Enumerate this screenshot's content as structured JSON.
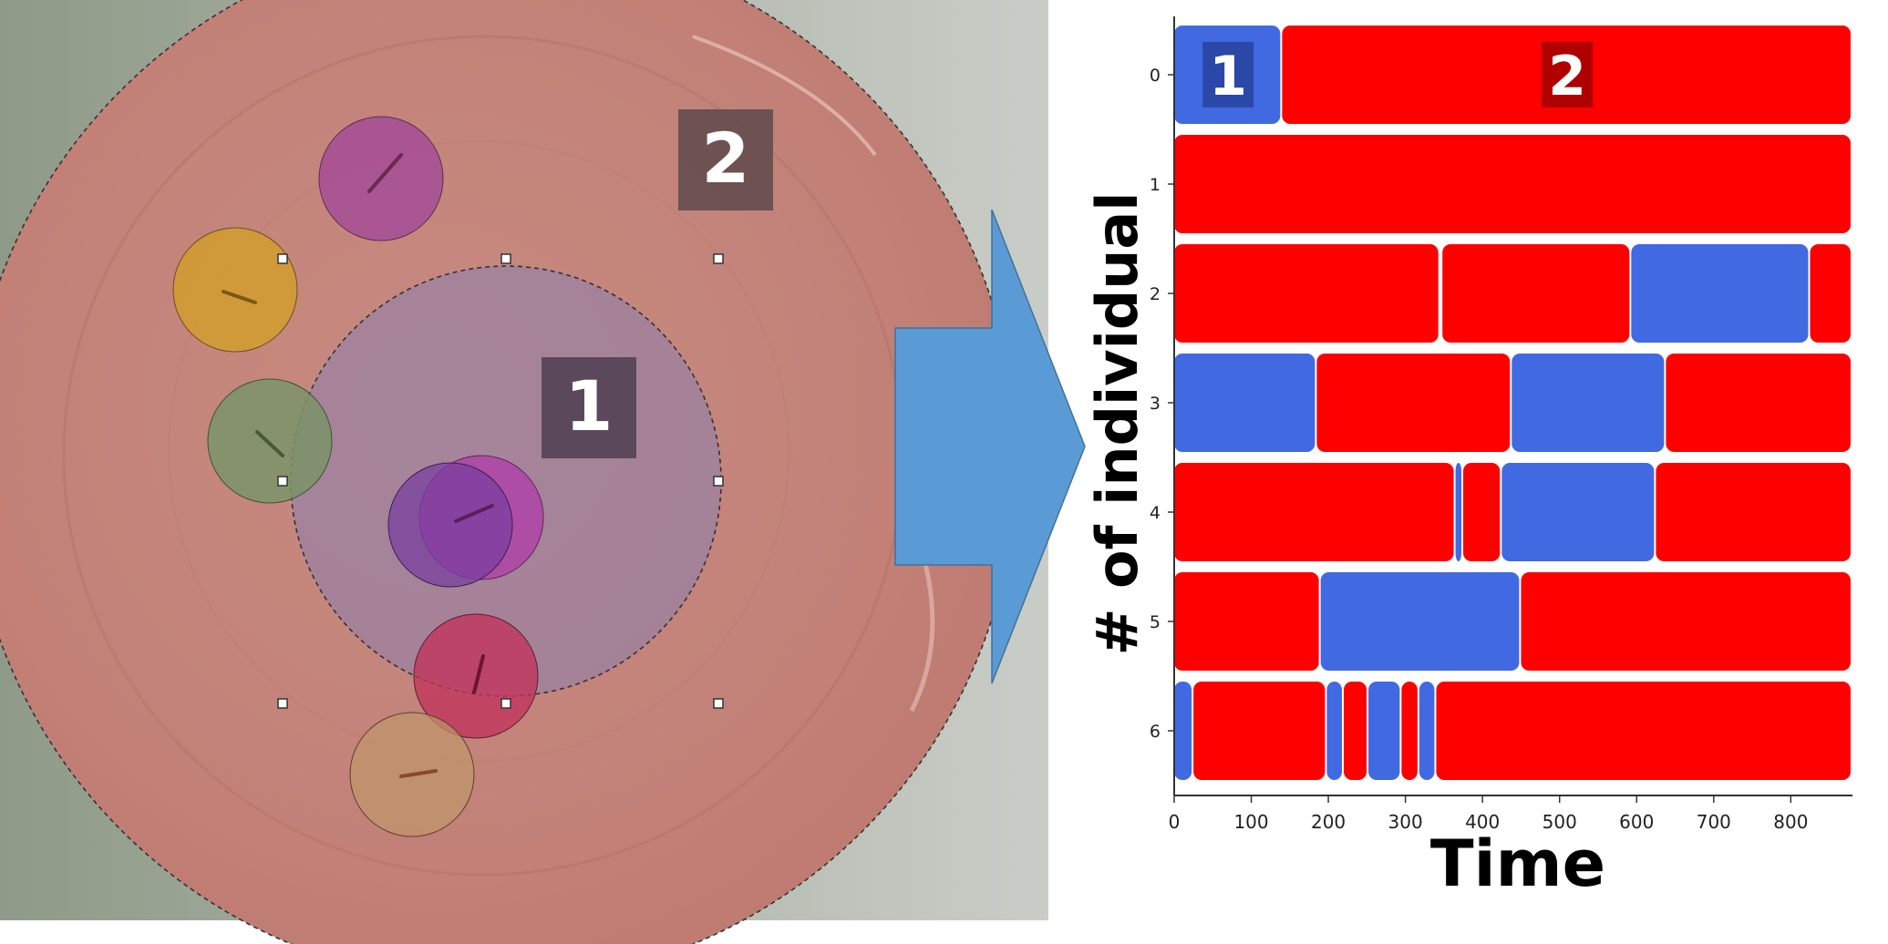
{
  "photo": {
    "zone_labels": [
      "1",
      "2"
    ]
  },
  "chart_data": {
    "type": "timeline",
    "xlabel": "Time",
    "ylabel": "# of individual",
    "xlim": [
      0,
      880
    ],
    "x_ticks": [
      0,
      100,
      200,
      300,
      400,
      500,
      600,
      700,
      800
    ],
    "categories": [
      "0",
      "1",
      "2",
      "3",
      "4",
      "5",
      "6"
    ],
    "state_colors": {
      "1": "#4169e1",
      "2": "#ff0000"
    },
    "legend_labels": [
      "1",
      "2"
    ],
    "rows": [
      {
        "individual": "0",
        "segments": [
          {
            "state": "1",
            "start": 0,
            "end": 140
          },
          {
            "state": "2",
            "start": 140,
            "end": 880
          }
        ]
      },
      {
        "individual": "1",
        "segments": [
          {
            "state": "2",
            "start": 0,
            "end": 880
          }
        ]
      },
      {
        "individual": "2",
        "segments": [
          {
            "state": "2",
            "start": 0,
            "end": 345
          },
          {
            "state": "2",
            "start": 348,
            "end": 593
          },
          {
            "state": "1",
            "start": 593,
            "end": 825
          },
          {
            "state": "2",
            "start": 825,
            "end": 880
          }
        ]
      },
      {
        "individual": "3",
        "segments": [
          {
            "state": "1",
            "start": 0,
            "end": 185
          },
          {
            "state": "2",
            "start": 185,
            "end": 438
          },
          {
            "state": "1",
            "start": 438,
            "end": 638
          },
          {
            "state": "2",
            "start": 638,
            "end": 880
          }
        ]
      },
      {
        "individual": "4",
        "segments": [
          {
            "state": "2",
            "start": 0,
            "end": 365
          },
          {
            "state": "1",
            "start": 365,
            "end": 375
          },
          {
            "state": "2",
            "start": 375,
            "end": 425
          },
          {
            "state": "1",
            "start": 425,
            "end": 625
          },
          {
            "state": "2",
            "start": 625,
            "end": 880
          }
        ]
      },
      {
        "individual": "5",
        "segments": [
          {
            "state": "2",
            "start": 0,
            "end": 190
          },
          {
            "state": "1",
            "start": 190,
            "end": 450
          },
          {
            "state": "2",
            "start": 450,
            "end": 880
          }
        ]
      },
      {
        "individual": "6",
        "segments": [
          {
            "state": "1",
            "start": 0,
            "end": 25
          },
          {
            "state": "2",
            "start": 25,
            "end": 198
          },
          {
            "state": "1",
            "start": 198,
            "end": 220
          },
          {
            "state": "2",
            "start": 220,
            "end": 252
          },
          {
            "state": "1",
            "start": 252,
            "end": 295
          },
          {
            "state": "2",
            "start": 295,
            "end": 318
          },
          {
            "state": "1",
            "start": 318,
            "end": 340
          },
          {
            "state": "2",
            "start": 340,
            "end": 880
          }
        ]
      }
    ]
  }
}
